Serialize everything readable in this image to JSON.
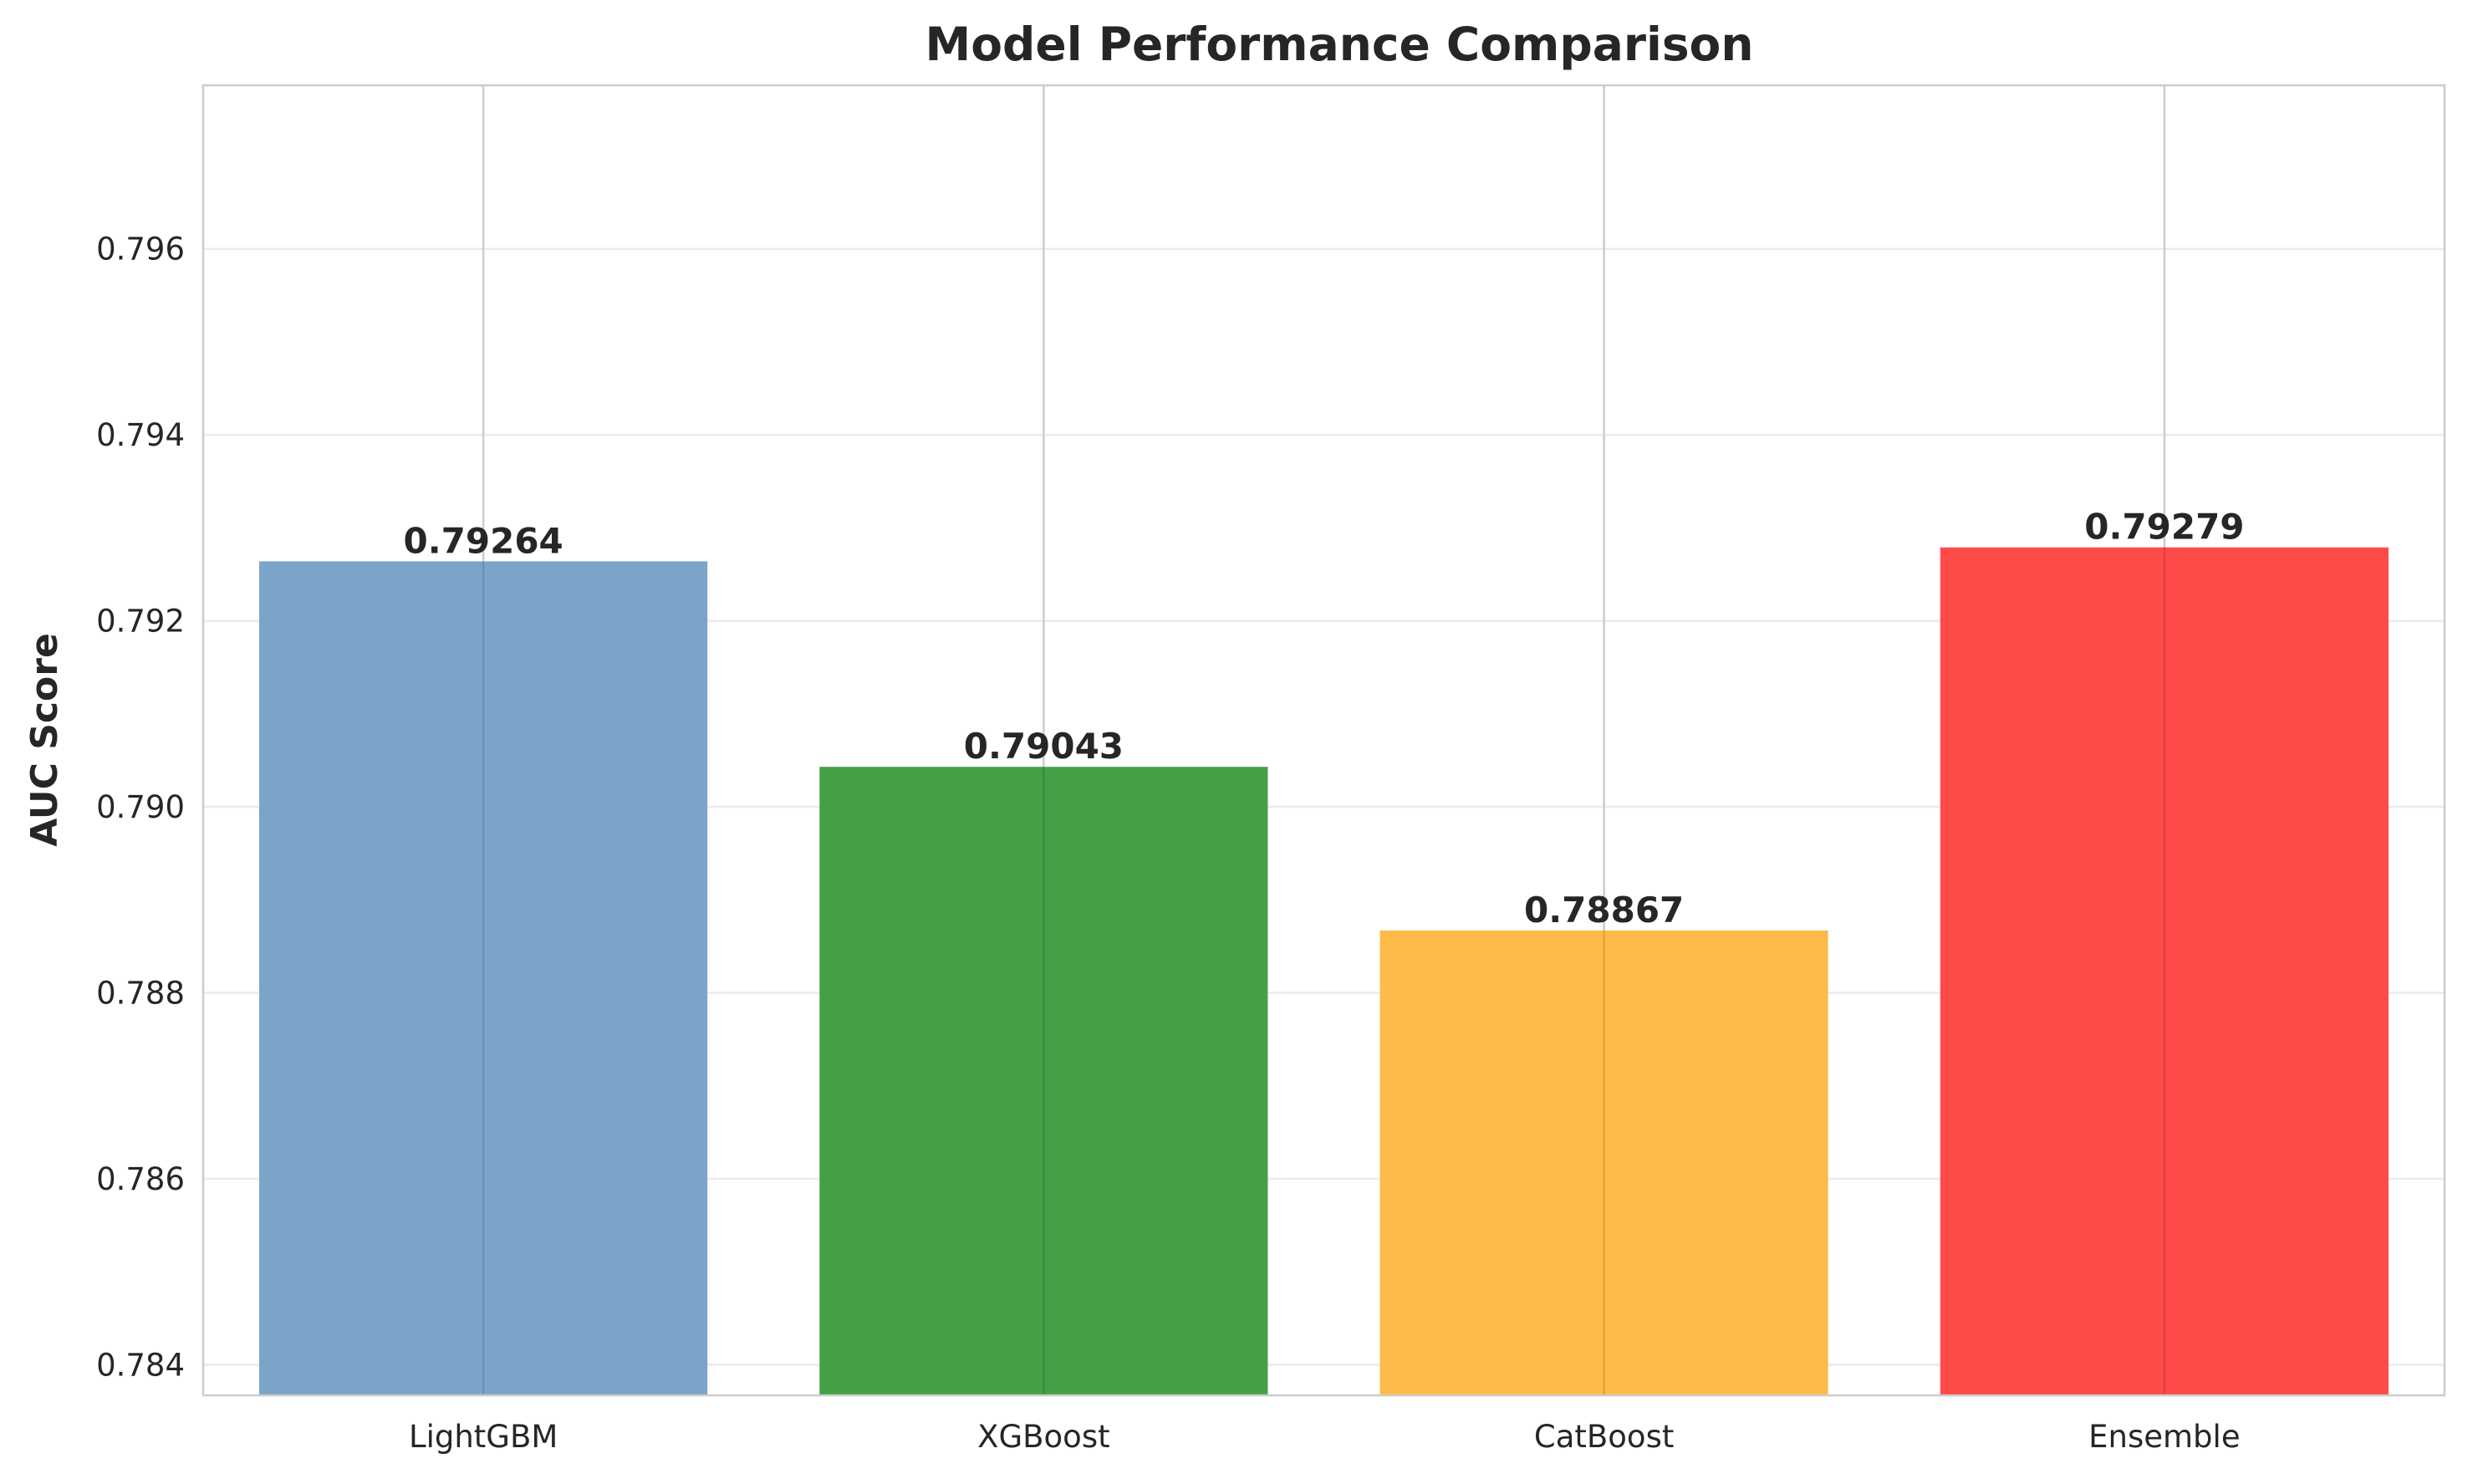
{
  "chart_data": {
    "type": "bar",
    "title": "Model Performance Comparison",
    "xlabel": "",
    "ylabel": "AUC Score",
    "categories": [
      "LightGBM",
      "XGBoost",
      "CatBoost",
      "Ensemble"
    ],
    "values": [
      0.79264,
      0.79043,
      0.78867,
      0.79279
    ],
    "value_labels": [
      "0.79264",
      "0.79043",
      "0.78867",
      "0.79279"
    ],
    "colors": [
      "#7aa5c9",
      "#43a047",
      "#ffbb4a",
      "#ff4a4a"
    ],
    "ylim": [
      0.78367,
      0.79776
    ],
    "yticks": [
      0.784,
      0.786,
      0.788,
      0.79,
      0.792,
      0.794,
      0.796
    ],
    "ytick_labels": [
      "0.784",
      "0.786",
      "0.788",
      "0.790",
      "0.792",
      "0.794",
      "0.796"
    ],
    "grid": true,
    "legend": "none"
  }
}
